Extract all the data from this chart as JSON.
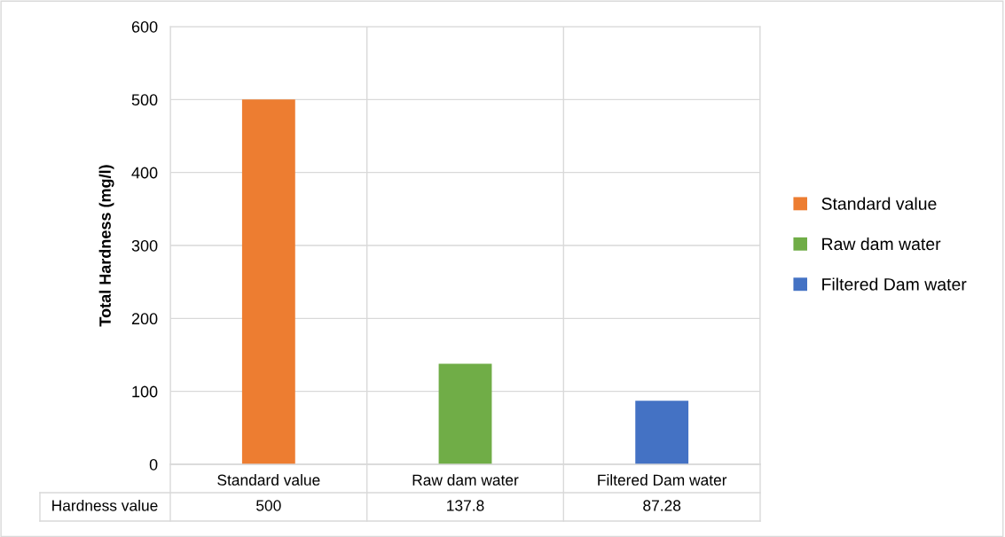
{
  "chart_data": {
    "type": "bar",
    "ylabel": "Total Hardness (mg/l)",
    "categories": [
      "Standard value",
      "Raw dam water",
      "Filtered Dam water"
    ],
    "series": [
      {
        "name": "Standard value",
        "color": "#ed7d31",
        "values": [
          500,
          null,
          null
        ]
      },
      {
        "name": "Raw dam water",
        "color": "#70ad47",
        "values": [
          null,
          137.8,
          null
        ]
      },
      {
        "name": "Filtered Dam water",
        "color": "#4472c4",
        "values": [
          null,
          null,
          87.28
        ]
      }
    ],
    "annotations": [
      "Hardness value"
    ],
    "ylim": [
      0,
      600
    ],
    "yticks": [
      0,
      100,
      200,
      300,
      400,
      500,
      600
    ],
    "grid": true,
    "legend": "right",
    "data_labels": true
  }
}
